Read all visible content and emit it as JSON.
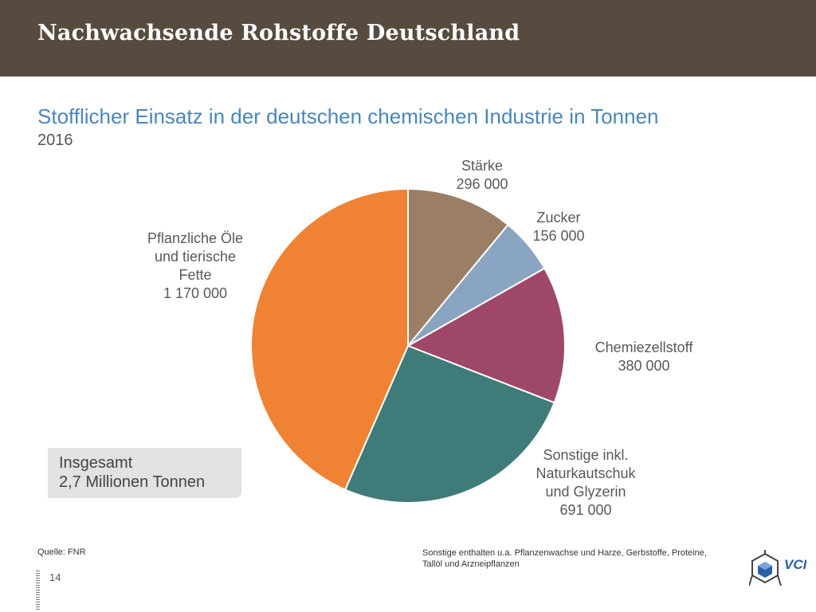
{
  "header": {
    "title": "Nachwachsende Rohstoffe Deutschland"
  },
  "chart_data": {
    "type": "pie",
    "title": "Stofflicher Einsatz in der deutschen chemischen Industrie in Tonnen",
    "subtitle": "2016",
    "start_angle_deg": 0,
    "slices": [
      {
        "label_lines": [
          "Stärke"
        ],
        "value": 296000,
        "value_text": "296 000",
        "color": "#9a7f66"
      },
      {
        "label_lines": [
          "Zucker"
        ],
        "value": 156000,
        "value_text": "156 000",
        "color": "#89a5c2"
      },
      {
        "label_lines": [
          "Chemiezellstoff"
        ],
        "value": 380000,
        "value_text": "380 000",
        "color": "#9e4769"
      },
      {
        "label_lines": [
          "Sonstige inkl.",
          "Naturkautschuk",
          "und Glyzerin"
        ],
        "value": 691000,
        "value_text": "691 000",
        "color": "#3e7b79"
      },
      {
        "label_lines": [
          "Pflanzliche Öle",
          "und tierische",
          "Fette"
        ],
        "value": 1170000,
        "value_text": "1 170 000",
        "color": "#ef8333"
      }
    ]
  },
  "total": {
    "line1": "Insgesamt",
    "line2": "2,7 Millionen Tonnen"
  },
  "footer": {
    "source": "Quelle: FNR",
    "note": "Sonstige enthalten u.a. Pflanzenwachse und Harze, Gerbstoffe, Proteine, Tallöl und Arzneipflanzen",
    "page_number": "14",
    "logo_text": "VCI"
  }
}
